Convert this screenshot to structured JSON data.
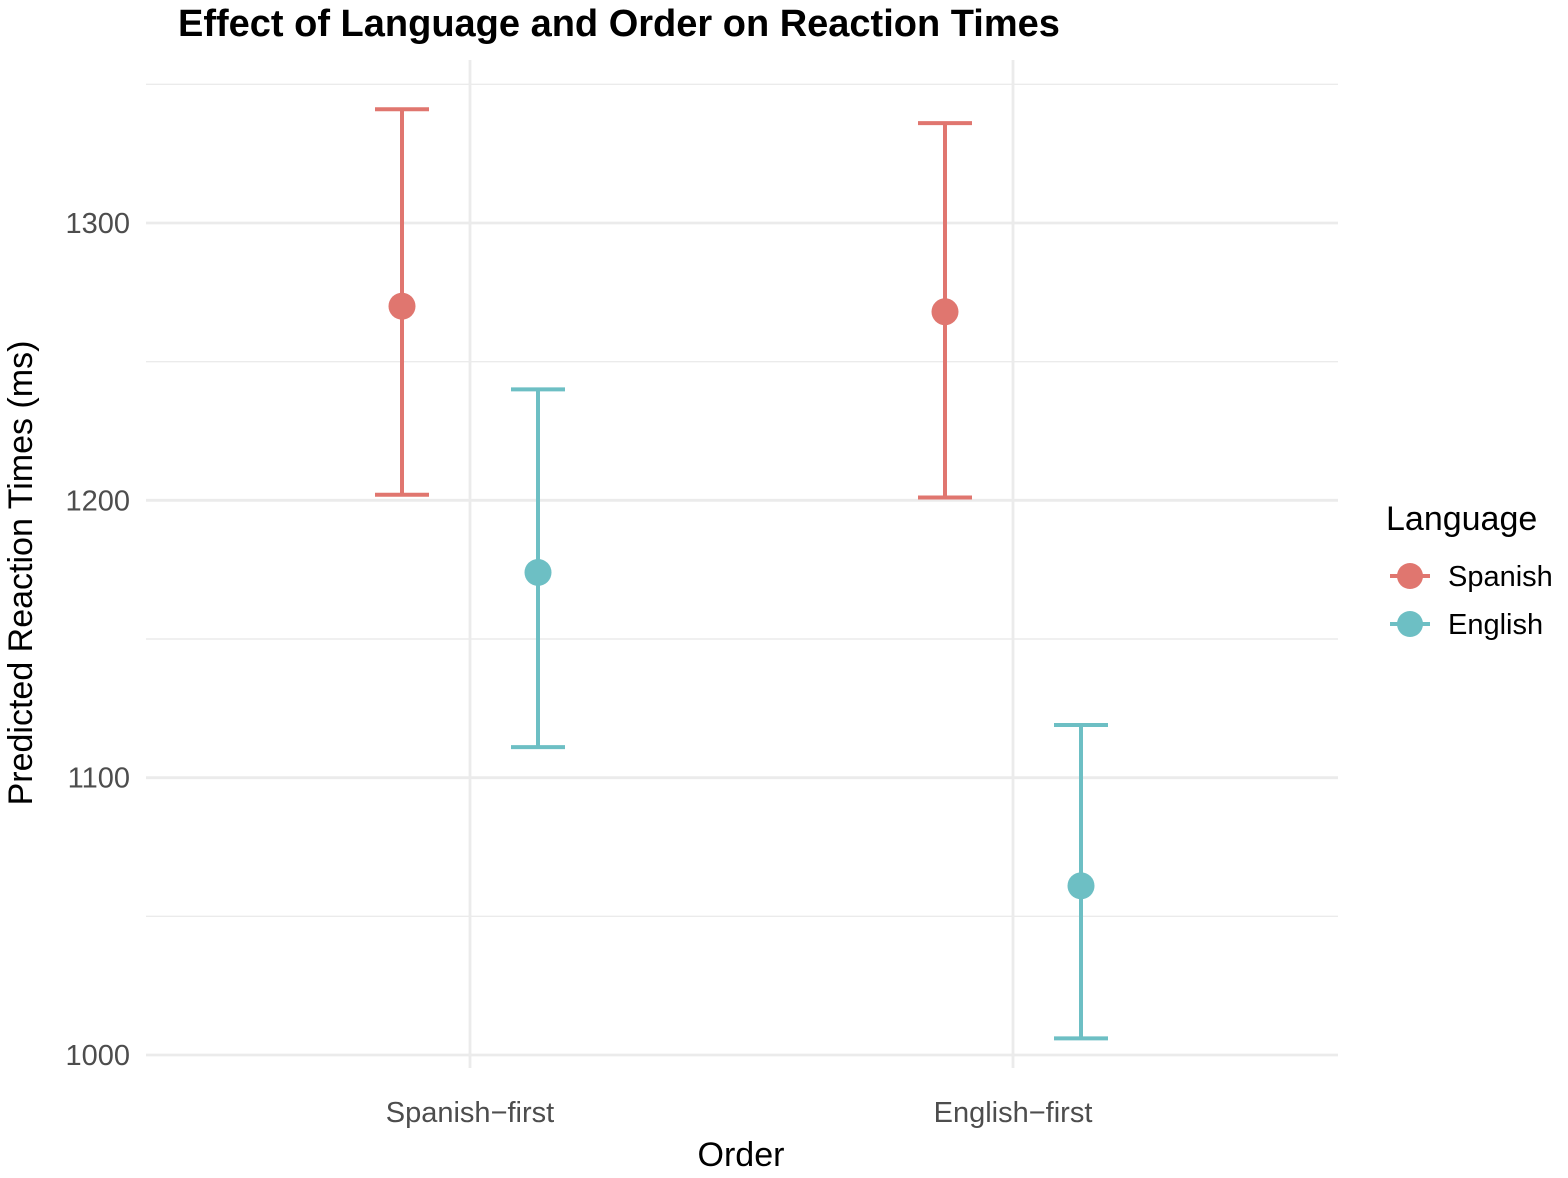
{
  "chart_data": {
    "type": "scatter",
    "title": "Effect of Language and Order on Reaction Times",
    "xlabel": "Order",
    "ylabel": "Predicted Reaction Times (ms)",
    "categories": [
      "Spanish−first",
      "English−first"
    ],
    "ylim": [
      995,
      1350
    ],
    "yticks": [
      1000,
      1100,
      1200,
      1300
    ],
    "ytick_labels": [
      "1000",
      "1100",
      "1200",
      "1300"
    ],
    "grid": true,
    "legend": {
      "title": "Language",
      "position": "right"
    },
    "series": [
      {
        "name": "Spanish",
        "color": "#E0766F",
        "values": [
          1270,
          1268
        ],
        "lower": [
          1202,
          1201
        ],
        "upper": [
          1341,
          1336
        ]
      },
      {
        "name": "English",
        "color": "#6DBFC4",
        "values": [
          1174,
          1061
        ],
        "lower": [
          1111,
          1006
        ],
        "upper": [
          1240,
          1119
        ]
      }
    ]
  }
}
